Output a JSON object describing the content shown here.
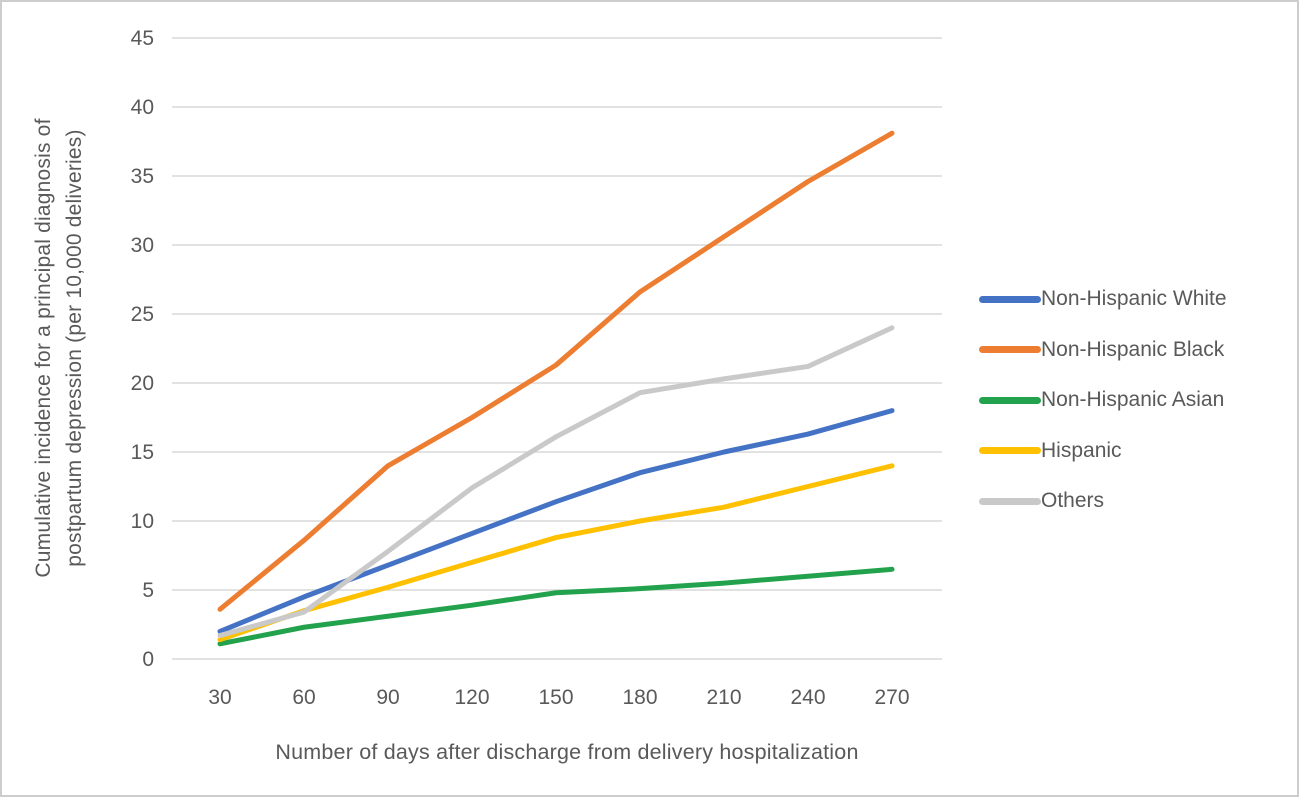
{
  "figure": {
    "background": "#ffffff",
    "border_color": "#cdcdcd",
    "text_color": "#595959",
    "gridline_color": "#d9d9d9"
  },
  "chart_data": {
    "type": "line",
    "title": "",
    "xlabel": "Number of days after discharge from delivery hospitalization",
    "ylabel": "Cumulative incidence for a principal diagnosis of postpartum depression (per 10,000 deliveries)",
    "ylabel_lines": [
      "Cumulative incidence for a principal diagnosis of",
      "postpartum depression (per 10,000 deliveries)"
    ],
    "x": [
      30,
      60,
      90,
      120,
      150,
      180,
      210,
      240,
      270
    ],
    "ylim": [
      0,
      45
    ],
    "ytick_step": 5,
    "yticks": [
      0,
      5,
      10,
      15,
      20,
      25,
      30,
      35,
      40,
      45
    ],
    "grid": "horizontal",
    "legend_position": "right",
    "series": [
      {
        "name": "Non-Hispanic White",
        "color": "#4472C4",
        "values": [
          2.0,
          4.5,
          6.8,
          9.1,
          11.4,
          13.5,
          15.0,
          16.3,
          18.0
        ]
      },
      {
        "name": "Non-Hispanic Black",
        "color": "#ED7D31",
        "values": [
          3.6,
          8.6,
          14.0,
          17.5,
          21.3,
          26.6,
          30.6,
          34.6,
          38.1
        ]
      },
      {
        "name": "Non-Hispanic Asian",
        "color": "#22A24C",
        "values": [
          1.1,
          2.3,
          3.1,
          3.9,
          4.8,
          5.1,
          5.5,
          6.0,
          6.5
        ]
      },
      {
        "name": "Hispanic",
        "color": "#FFC000",
        "values": [
          1.4,
          3.5,
          5.2,
          7.0,
          8.8,
          10.0,
          11.0,
          12.5,
          14.0
        ]
      },
      {
        "name": "Others",
        "color": "#C9C9C9",
        "values": [
          1.7,
          3.4,
          7.8,
          12.4,
          16.1,
          19.3,
          20.3,
          21.2,
          24.0
        ]
      }
    ]
  }
}
